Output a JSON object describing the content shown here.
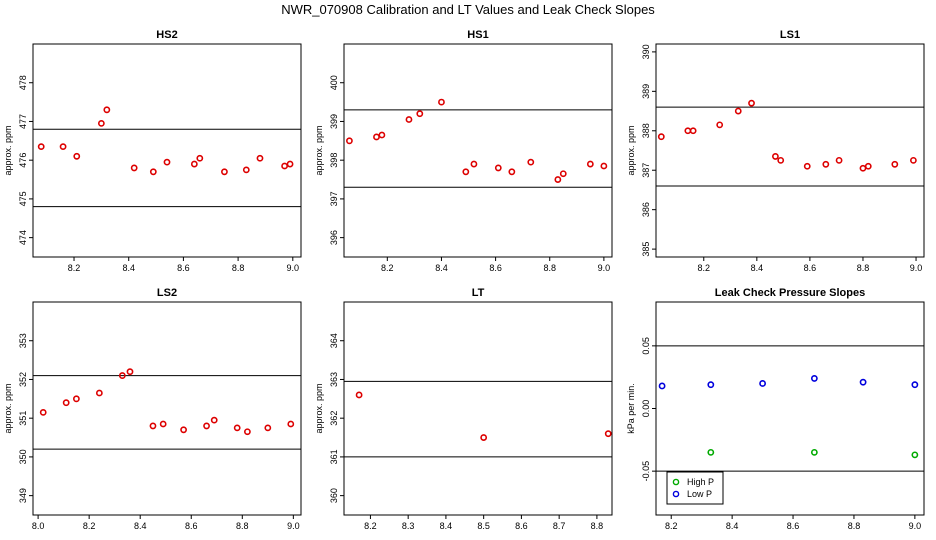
{
  "figure": {
    "title": "NWR_070908  Calibration and LT Values and Leak Check Slopes"
  },
  "chart_data": [
    {
      "type": "scatter",
      "title": "HS2",
      "ylabel": "approx. ppm",
      "xlim": [
        8.05,
        9.03
      ],
      "ylim": [
        473.5,
        479.0
      ],
      "xticks": [
        8.2,
        8.4,
        8.6,
        8.8,
        9.0
      ],
      "xtick_labels": [
        "8.2",
        "8.4",
        "8.6",
        "8.8",
        "9.0"
      ],
      "yticks": [
        474,
        475,
        476,
        477,
        478
      ],
      "ytick_labels": [
        "474",
        "475",
        "476",
        "477",
        "478"
      ],
      "hlines": [
        476.8,
        474.8
      ],
      "series": [
        {
          "color": "#dd0000",
          "x": [
            8.08,
            8.16,
            8.21,
            8.3,
            8.32,
            8.42,
            8.49,
            8.54,
            8.64,
            8.66,
            8.75,
            8.83,
            8.88,
            8.97,
            8.99
          ],
          "y": [
            476.35,
            476.35,
            476.1,
            476.95,
            477.3,
            475.8,
            475.7,
            475.95,
            475.9,
            476.05,
            475.7,
            475.75,
            476.05,
            475.85,
            475.9
          ]
        }
      ]
    },
    {
      "type": "scatter",
      "title": "HS1",
      "ylabel": "approx. ppm",
      "xlim": [
        8.04,
        9.03
      ],
      "ylim": [
        395.5,
        401.0
      ],
      "xticks": [
        8.2,
        8.4,
        8.6,
        8.8,
        9.0
      ],
      "xtick_labels": [
        "8.2",
        "8.4",
        "8.6",
        "8.8",
        "9.0"
      ],
      "yticks": [
        396,
        397,
        398,
        399,
        400
      ],
      "ytick_labels": [
        "396",
        "397",
        "398",
        "399",
        "400"
      ],
      "hlines": [
        399.3,
        397.3
      ],
      "series": [
        {
          "color": "#dd0000",
          "x": [
            8.06,
            8.16,
            8.18,
            8.28,
            8.32,
            8.4,
            8.49,
            8.52,
            8.61,
            8.66,
            8.73,
            8.83,
            8.85,
            8.95,
            9.0
          ],
          "y": [
            398.5,
            398.6,
            398.65,
            399.05,
            399.2,
            399.5,
            397.7,
            397.9,
            397.8,
            397.7,
            397.95,
            397.5,
            397.65,
            397.9,
            397.85
          ]
        }
      ]
    },
    {
      "type": "scatter",
      "title": "LS1",
      "ylabel": "approx. ppm",
      "xlim": [
        8.02,
        9.03
      ],
      "ylim": [
        384.8,
        390.2
      ],
      "xticks": [
        8.2,
        8.4,
        8.6,
        8.8,
        9.0
      ],
      "xtick_labels": [
        "8.2",
        "8.4",
        "8.6",
        "8.8",
        "9.0"
      ],
      "yticks": [
        385,
        386,
        387,
        388,
        389,
        390
      ],
      "ytick_labels": [
        "385",
        "386",
        "387",
        "388",
        "389",
        "390"
      ],
      "hlines": [
        388.6,
        386.6
      ],
      "series": [
        {
          "color": "#dd0000",
          "x": [
            8.04,
            8.14,
            8.16,
            8.26,
            8.33,
            8.38,
            8.47,
            8.49,
            8.59,
            8.66,
            8.71,
            8.8,
            8.82,
            8.92,
            8.99
          ],
          "y": [
            387.85,
            388.0,
            388.0,
            388.15,
            388.5,
            388.7,
            387.35,
            387.25,
            387.1,
            387.15,
            387.25,
            387.05,
            387.1,
            387.15,
            387.25
          ]
        }
      ]
    },
    {
      "type": "scatter",
      "title": "LS2",
      "ylabel": "approx. ppm",
      "xlim": [
        7.98,
        9.03
      ],
      "ylim": [
        348.5,
        354.0
      ],
      "xticks": [
        8.0,
        8.2,
        8.4,
        8.6,
        8.8,
        9.0
      ],
      "xtick_labels": [
        "8.0",
        "8.2",
        "8.4",
        "8.6",
        "8.8",
        "9.0"
      ],
      "yticks": [
        349,
        350,
        351,
        352,
        353
      ],
      "ytick_labels": [
        "349",
        "350",
        "351",
        "352",
        "353"
      ],
      "hlines": [
        352.1,
        350.2
      ],
      "series": [
        {
          "color": "#dd0000",
          "x": [
            8.02,
            8.11,
            8.15,
            8.24,
            8.33,
            8.36,
            8.45,
            8.49,
            8.57,
            8.66,
            8.69,
            8.78,
            8.82,
            8.9,
            8.99
          ],
          "y": [
            351.15,
            351.4,
            351.5,
            351.65,
            352.1,
            352.2,
            350.8,
            350.85,
            350.7,
            350.8,
            350.95,
            350.75,
            350.65,
            350.75,
            350.85
          ]
        }
      ]
    },
    {
      "type": "scatter",
      "title": "LT",
      "ylabel": "approx. ppm",
      "xlim": [
        8.13,
        8.84
      ],
      "ylim": [
        359.5,
        365.0
      ],
      "xticks": [
        8.2,
        8.3,
        8.4,
        8.5,
        8.6,
        8.7,
        8.8
      ],
      "xtick_labels": [
        "8.2",
        "8.3",
        "8.4",
        "8.5",
        "8.6",
        "8.7",
        "8.8"
      ],
      "yticks": [
        360,
        361,
        362,
        363,
        364
      ],
      "ytick_labels": [
        "360",
        "361",
        "362",
        "363",
        "364"
      ],
      "hlines": [
        362.95,
        361.0
      ],
      "series": [
        {
          "color": "#dd0000",
          "x": [
            8.17,
            8.5,
            8.83
          ],
          "y": [
            362.6,
            361.5,
            361.6
          ]
        }
      ]
    },
    {
      "type": "scatter",
      "title": "Leak Check Pressure Slopes",
      "ylabel": "kPa per min.",
      "xlim": [
        8.15,
        9.03
      ],
      "ylim": [
        -0.085,
        0.085
      ],
      "xticks": [
        8.2,
        8.4,
        8.6,
        8.8,
        9.0
      ],
      "xtick_labels": [
        "8.2",
        "8.4",
        "8.6",
        "8.8",
        "9.0"
      ],
      "yticks": [
        -0.05,
        0.0,
        0.05
      ],
      "ytick_labels": [
        "-0.05",
        "0.00",
        "0.05"
      ],
      "hlines": [
        0.05,
        -0.05
      ],
      "legend": "bottom-left",
      "series": [
        {
          "name": "High P",
          "color": "#00aa00",
          "x": [
            8.33,
            8.67,
            9.0
          ],
          "y": [
            -0.035,
            -0.035,
            -0.037
          ]
        },
        {
          "name": "Low P",
          "color": "#0000dd",
          "x": [
            8.17,
            8.33,
            8.5,
            8.67,
            8.83,
            9.0
          ],
          "y": [
            0.018,
            0.019,
            0.02,
            0.024,
            0.021,
            0.019
          ]
        }
      ]
    }
  ]
}
